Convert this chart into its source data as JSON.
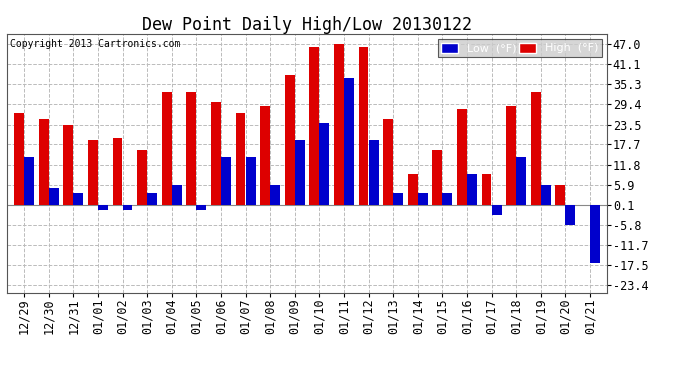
{
  "title": "Dew Point Daily High/Low 20130122",
  "copyright": "Copyright 2013 Cartronics.com",
  "dates": [
    "12/29",
    "12/30",
    "12/31",
    "01/01",
    "01/02",
    "01/03",
    "01/04",
    "01/05",
    "01/06",
    "01/07",
    "01/08",
    "01/09",
    "01/10",
    "01/11",
    "01/12",
    "01/13",
    "01/14",
    "01/15",
    "01/16",
    "01/17",
    "01/18",
    "01/19",
    "01/20",
    "01/21"
  ],
  "high": [
    27.0,
    25.0,
    23.5,
    19.0,
    19.5,
    16.0,
    33.0,
    33.0,
    30.0,
    27.0,
    29.0,
    38.0,
    46.0,
    47.0,
    46.0,
    25.0,
    9.0,
    16.0,
    28.0,
    9.0,
    29.0,
    33.0,
    5.9,
    0.1
  ],
  "low": [
    14.0,
    5.0,
    3.5,
    -1.5,
    -1.5,
    3.5,
    5.9,
    -1.5,
    14.0,
    14.0,
    5.9,
    19.0,
    24.0,
    37.0,
    19.0,
    3.5,
    3.5,
    3.5,
    9.0,
    -3.0,
    14.0,
    5.9,
    -5.8,
    -17.0
  ],
  "high_color": "#dd0000",
  "low_color": "#0000cc",
  "background_color": "#ffffff",
  "plot_background": "#ffffff",
  "grid_color": "#bbbbbb",
  "yticks": [
    47.0,
    41.1,
    35.3,
    29.4,
    23.5,
    17.7,
    11.8,
    5.9,
    0.1,
    -5.8,
    -11.7,
    -17.5,
    -23.4
  ],
  "ylim": [
    -25.5,
    50.0
  ],
  "title_fontsize": 12,
  "tick_fontsize": 8.5,
  "legend_fontsize": 8
}
